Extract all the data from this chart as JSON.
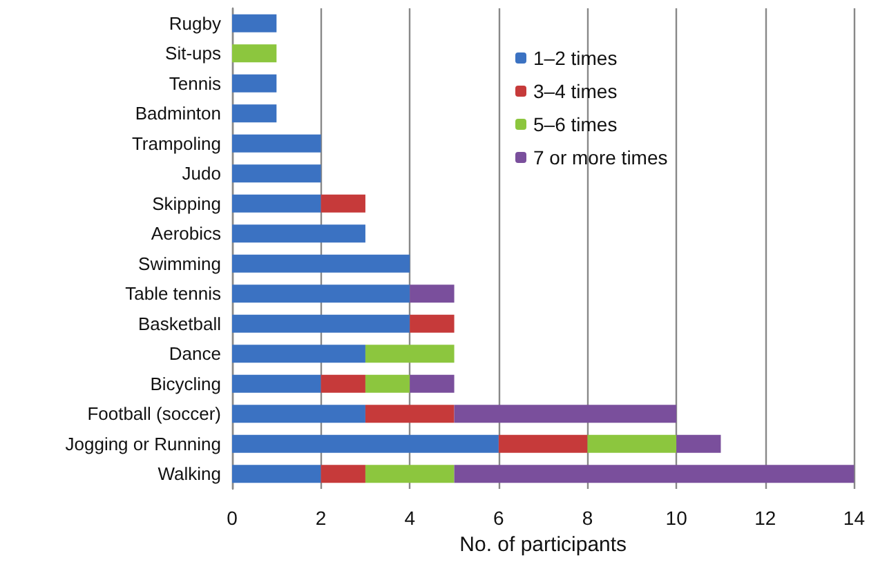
{
  "chart_data": {
    "type": "bar",
    "orientation": "horizontal",
    "stacked": true,
    "xlabel": "No. of participants",
    "categories": [
      "Rugby",
      "Sit-ups",
      "Tennis",
      "Badminton",
      "Trampoling",
      "Judo",
      "Skipping",
      "Aerobics",
      "Swimming",
      "Table tennis",
      "Basketball",
      "Dance",
      "Bicycling",
      "Football (soccer)",
      "Jogging or Running",
      "Walking"
    ],
    "series": [
      {
        "name": "1–2 times",
        "color": "#3b72c2",
        "values": [
          1,
          0,
          1,
          1,
          2,
          2,
          2,
          3,
          4,
          4,
          4,
          3,
          2,
          3,
          6,
          2
        ]
      },
      {
        "name": "3–4 times",
        "color": "#c63a3a",
        "values": [
          0,
          0,
          0,
          0,
          0,
          0,
          1,
          0,
          0,
          0,
          1,
          0,
          1,
          2,
          2,
          1
        ]
      },
      {
        "name": "5–6 times",
        "color": "#8cc63e",
        "values": [
          0,
          1,
          0,
          0,
          0,
          0,
          0,
          0,
          0,
          0,
          0,
          2,
          1,
          0,
          2,
          2
        ]
      },
      {
        "name": "7 or more times",
        "color": "#7a4f9c",
        "values": [
          0,
          0,
          0,
          0,
          0,
          0,
          0,
          0,
          0,
          1,
          0,
          0,
          1,
          5,
          1,
          9
        ]
      }
    ],
    "xlim": [
      0,
      14
    ],
    "xticks": [
      0,
      2,
      4,
      6,
      8,
      10,
      12,
      14
    ],
    "grid": "x",
    "legend": "top right"
  }
}
